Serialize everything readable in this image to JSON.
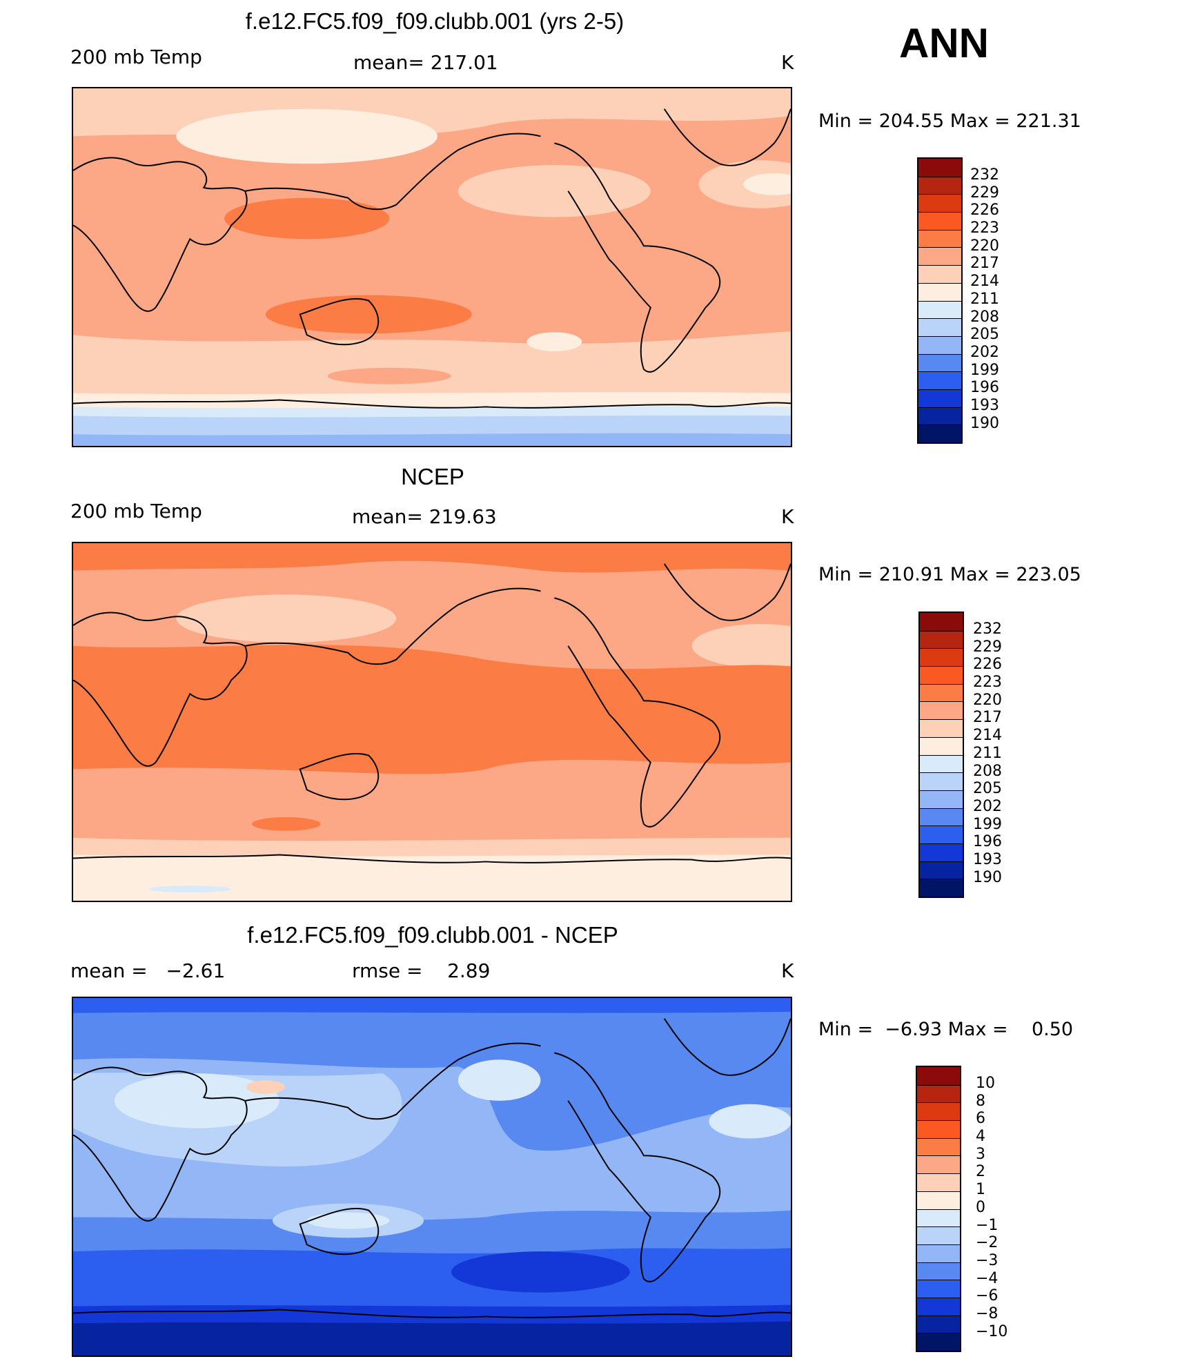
{
  "season": "ANN",
  "panels": [
    {
      "title": "f.e12.FC5.f09_f09.clubb.001 (yrs 2-5)",
      "left_label": "200 mb Temp",
      "center_label": "mean= 217.01",
      "units": "K",
      "min_max": "Min = 204.55 Max = 221.31",
      "colorbar_levels": [
        "232",
        "229",
        "226",
        "223",
        "220",
        "217",
        "214",
        "211",
        "208",
        "205",
        "202",
        "199",
        "196",
        "193",
        "190"
      ]
    },
    {
      "title": "NCEP",
      "left_label": "200 mb Temp",
      "center_label": "mean= 219.63",
      "units": "K",
      "min_max": "Min = 210.91 Max = 223.05",
      "colorbar_levels": [
        "232",
        "229",
        "226",
        "223",
        "220",
        "217",
        "214",
        "211",
        "208",
        "205",
        "202",
        "199",
        "196",
        "193",
        "190"
      ]
    },
    {
      "title": "f.e12.FC5.f09_f09.clubb.001 - NCEP",
      "left_label": "mean =   −2.61",
      "center_label": "rmse =    2.89",
      "units": "K",
      "min_max": "Min =  −6.93 Max =    0.50",
      "colorbar_levels": [
        "10",
        "8",
        "6",
        "4",
        "3",
        "2",
        "1",
        "0",
        "−1",
        "−2",
        "−3",
        "−4",
        "−6",
        "−8",
        "−10"
      ]
    }
  ],
  "colors": {
    "colorbar": [
      "#8b0a0a",
      "#b5250f",
      "#dc3a10",
      "#fa5a22",
      "#fc7c45",
      "#fca887",
      "#fdd0b8",
      "#feeee0",
      "#d9ebfb",
      "#b9d4f8",
      "#92b6f6",
      "#5889f0",
      "#2c5ff0",
      "#1438d8",
      "#06249f",
      "#001566"
    ],
    "coast": "#000000"
  }
}
